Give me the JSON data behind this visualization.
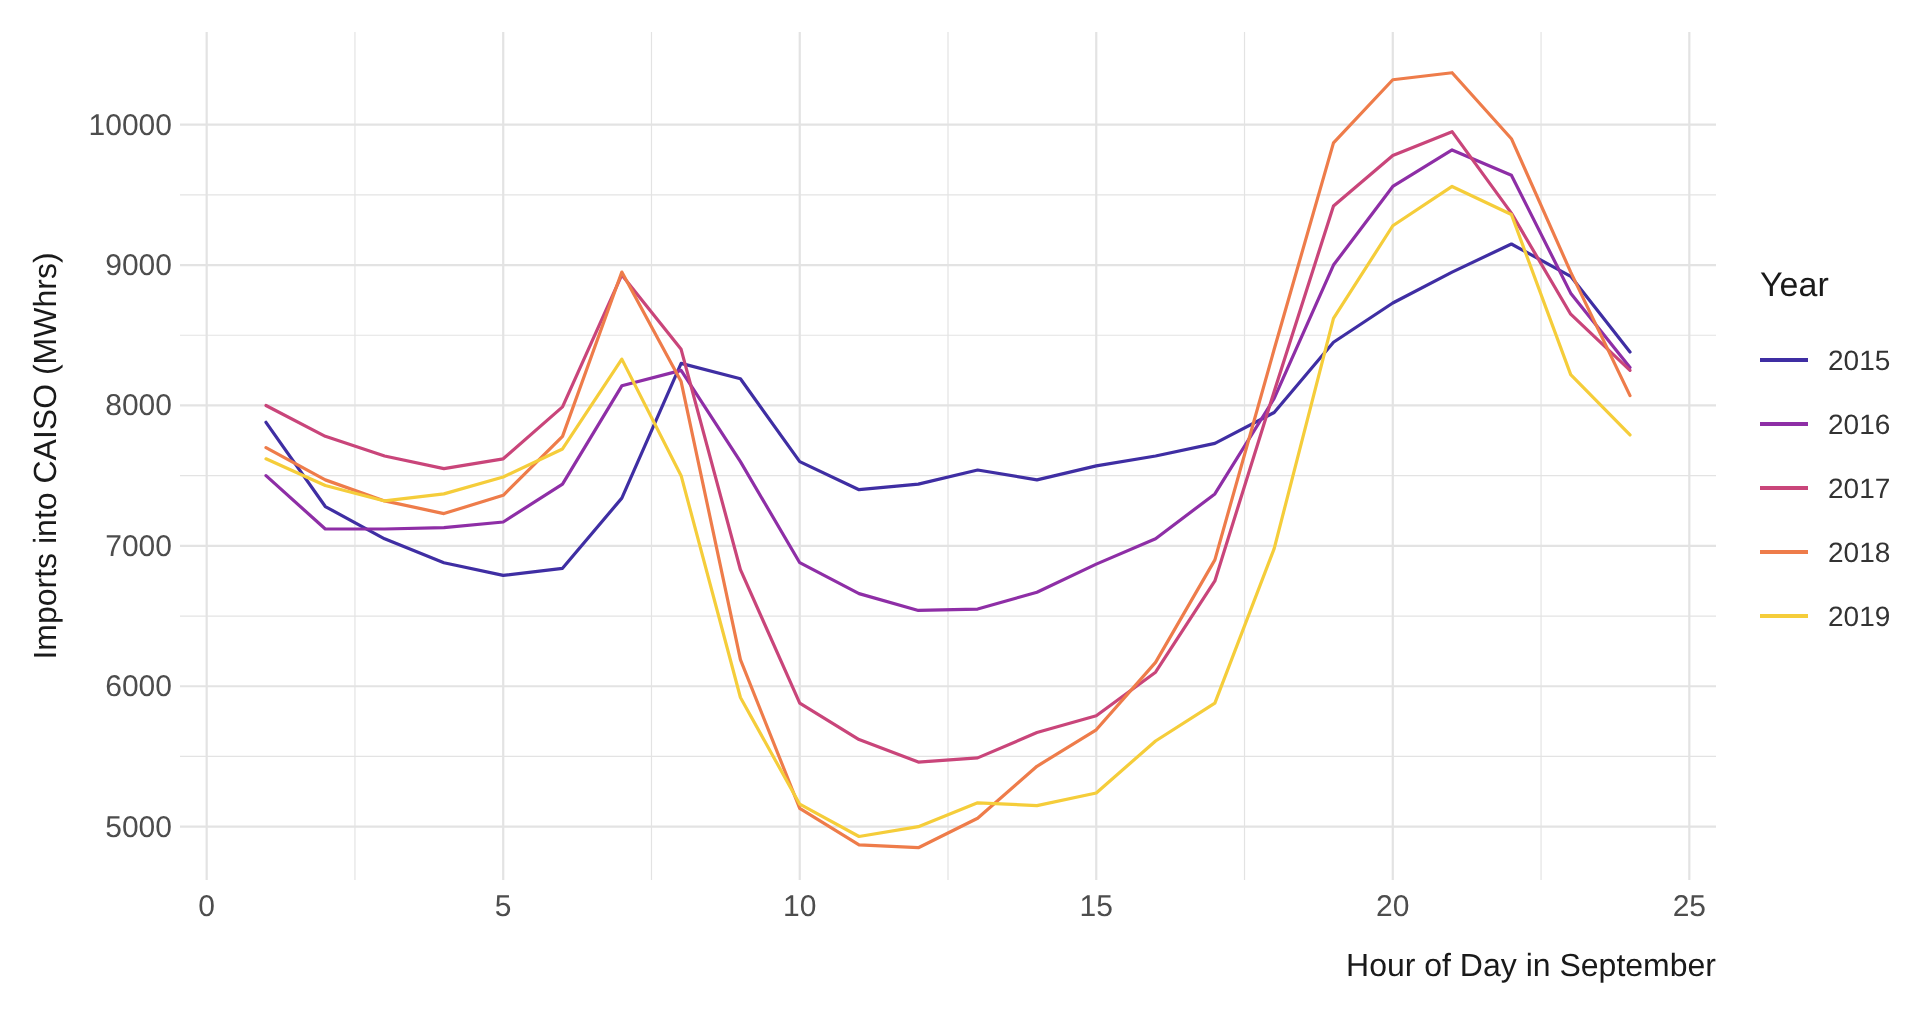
{
  "chart_data": {
    "type": "line",
    "xlabel": "Hour of Day in September",
    "ylabel": "Imports into CAISO (MWhrs)",
    "legend_title": "Year",
    "legend": "right",
    "grid": true,
    "line_style": "solid",
    "marker": "none",
    "x": [
      1,
      2,
      3,
      4,
      5,
      6,
      7,
      8,
      9,
      10,
      11,
      12,
      13,
      14,
      15,
      16,
      17,
      18,
      19,
      20,
      21,
      22,
      23,
      24
    ],
    "xlim": [
      -0.45,
      25.45
    ],
    "ylim": [
      4620,
      10660
    ],
    "xticks": [
      0,
      {
        "value": 2.5,
        "label": null
      },
      5,
      {
        "value": 7.5,
        "label": null
      },
      10,
      {
        "value": 12.5,
        "label": null
      },
      15,
      {
        "value": 17.5,
        "label": null
      },
      20,
      {
        "value": 22.5,
        "label": null
      },
      25
    ],
    "yticks": [
      5000,
      {
        "value": 5500,
        "label": null
      },
      6000,
      {
        "value": 6500,
        "label": null
      },
      7000,
      {
        "value": 7500,
        "label": null
      },
      8000,
      {
        "value": 8500,
        "label": null
      },
      9000,
      {
        "value": 9500,
        "label": null
      },
      10000
    ],
    "series": [
      {
        "name": "2015",
        "color": "#3f2ea3",
        "values": [
          7880,
          7280,
          7050,
          6880,
          6790,
          6840,
          7340,
          8300,
          8190,
          7600,
          7400,
          7440,
          7540,
          7470,
          7570,
          7640,
          7730,
          7950,
          8450,
          8730,
          8950,
          9150,
          8920,
          8380
        ]
      },
      {
        "name": "2016",
        "color": "#8e2ea6",
        "values": [
          7500,
          7120,
          7120,
          7130,
          7170,
          7440,
          8140,
          8250,
          7600,
          6880,
          6660,
          6540,
          6550,
          6670,
          6870,
          7050,
          7370,
          8050,
          9000,
          9560,
          9820,
          9640,
          8800,
          8270
        ]
      },
      {
        "name": "2017",
        "color": "#c9457a",
        "values": [
          8000,
          7780,
          7640,
          7550,
          7620,
          7990,
          8930,
          8400,
          6830,
          5880,
          5620,
          5460,
          5490,
          5670,
          5790,
          6100,
          6750,
          8100,
          9420,
          9780,
          9950,
          9370,
          8650,
          8250
        ]
      },
      {
        "name": "2018",
        "color": "#ee7c4a",
        "values": [
          7700,
          7470,
          7320,
          7230,
          7360,
          7780,
          8950,
          8170,
          6190,
          5130,
          4870,
          4850,
          5060,
          5430,
          5690,
          6170,
          6900,
          8400,
          9870,
          10320,
          10370,
          9900,
          8950,
          8070
        ]
      },
      {
        "name": "2019",
        "color": "#f5cd3a",
        "values": [
          7620,
          7430,
          7320,
          7370,
          7490,
          7690,
          8330,
          7500,
          5920,
          5160,
          4930,
          5000,
          5170,
          5150,
          5240,
          5610,
          5880,
          6980,
          8620,
          9280,
          9560,
          9360,
          8220,
          7790
        ]
      }
    ]
  }
}
